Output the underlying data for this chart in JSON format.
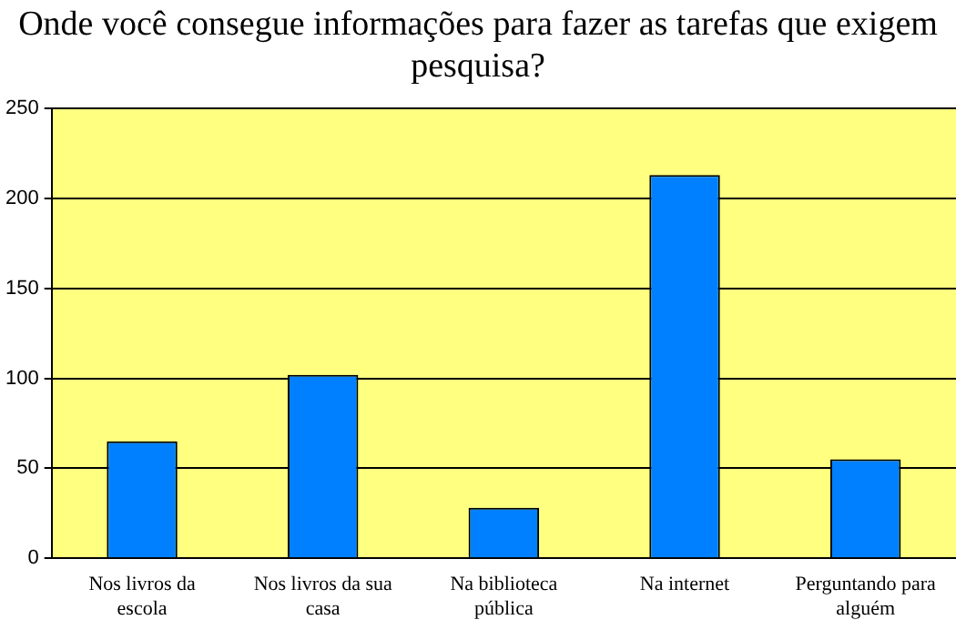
{
  "chart_data": {
    "type": "bar",
    "title": "Onde você consegue informações para fazer as tarefas que exigem pesquisa?",
    "categories": [
      "Nos livros da escola",
      "Nos livros da sua casa",
      "Na biblioteca pública",
      "Na internet",
      "Perguntando para alguém"
    ],
    "values": [
      65,
      102,
      28,
      213,
      55
    ],
    "color": "#0080ff",
    "ylim": [
      0,
      250
    ],
    "yticks": [
      0,
      50,
      100,
      150,
      200,
      250
    ],
    "grid": "y",
    "legend": false
  }
}
